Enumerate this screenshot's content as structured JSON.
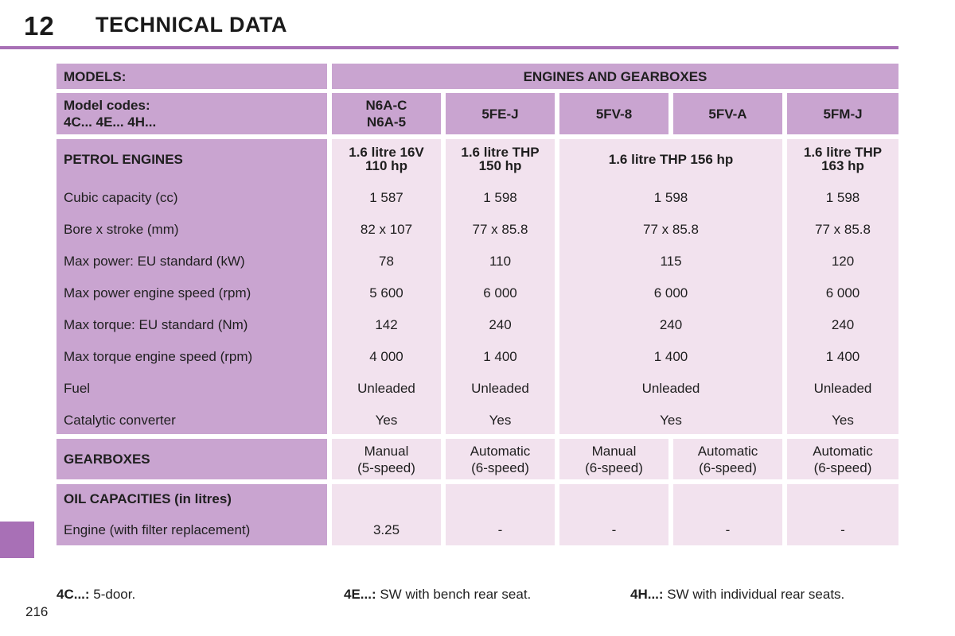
{
  "header": {
    "chapter_number": "12",
    "chapter_title": "TECHNICAL DATA"
  },
  "table": {
    "models_label": "MODELS:",
    "engines_label": "ENGINES AND GEARBOXES",
    "model_codes_label_1": "Model codes:",
    "model_codes_label_2": "4C... 4E... 4H...",
    "codes": [
      {
        "line1": "N6A-C",
        "line2": "N6A-5"
      },
      {
        "line1": "5FE-J",
        "line2": ""
      },
      {
        "line1": "5FV-8",
        "line2": ""
      },
      {
        "line1": "5FV-A",
        "line2": ""
      },
      {
        "line1": "5FM-J",
        "line2": ""
      }
    ],
    "petrol_label": "PETROL ENGINES",
    "engine_names": [
      {
        "line1": "1.6 litre 16V",
        "line2": "110 hp"
      },
      {
        "line1": "1.6 litre THP",
        "line2": "150 hp"
      },
      {
        "line1": "1.6 litre THP 156 hp",
        "line2": ""
      },
      {
        "line1": "1.6 litre THP",
        "line2": "163 hp"
      }
    ],
    "spec_rows": [
      {
        "label": "Cubic capacity (cc)",
        "values": [
          "1 587",
          "1 598",
          "1 598",
          "1 598"
        ]
      },
      {
        "label": "Bore x stroke (mm)",
        "values": [
          "82 x 107",
          "77 x 85.8",
          "77 x 85.8",
          "77 x 85.8"
        ]
      },
      {
        "label": "Max power: EU standard (kW)",
        "values": [
          "78",
          "110",
          "115",
          "120"
        ]
      },
      {
        "label": "Max power engine speed (rpm)",
        "values": [
          "5 600",
          "6 000",
          "6 000",
          "6 000"
        ]
      },
      {
        "label": "Max torque: EU standard (Nm)",
        "values": [
          "142",
          "240",
          "240",
          "240"
        ]
      },
      {
        "label": "Max torque engine speed (rpm)",
        "values": [
          "4 000",
          "1 400",
          "1 400",
          "1 400"
        ]
      },
      {
        "label": "Fuel",
        "values": [
          "Unleaded",
          "Unleaded",
          "Unleaded",
          "Unleaded"
        ]
      },
      {
        "label": "Catalytic converter",
        "values": [
          "Yes",
          "Yes",
          "Yes",
          "Yes"
        ]
      }
    ],
    "gearbox_label": "GEARBOXES",
    "gearboxes": [
      {
        "line1": "Manual",
        "line2": "(5-speed)"
      },
      {
        "line1": "Automatic",
        "line2": "(6-speed)"
      },
      {
        "line1": "Manual",
        "line2": "(6-speed)"
      },
      {
        "line1": "Automatic",
        "line2": "(6-speed)"
      },
      {
        "line1": "Automatic",
        "line2": "(6-speed)"
      }
    ],
    "oil_label": "OIL CAPACITIES (in litres)",
    "oil_row_label": "Engine (with filter replacement)",
    "oil_values": [
      "3.25",
      "-",
      "-",
      "-",
      "-"
    ]
  },
  "footnotes": [
    {
      "code": "4C...:",
      "text": " 5-door."
    },
    {
      "code": "4E...:",
      "text": " SW with bench rear seat."
    },
    {
      "code": "4H...:",
      "text": " SW with individual rear seats."
    }
  ],
  "page_number": "216"
}
